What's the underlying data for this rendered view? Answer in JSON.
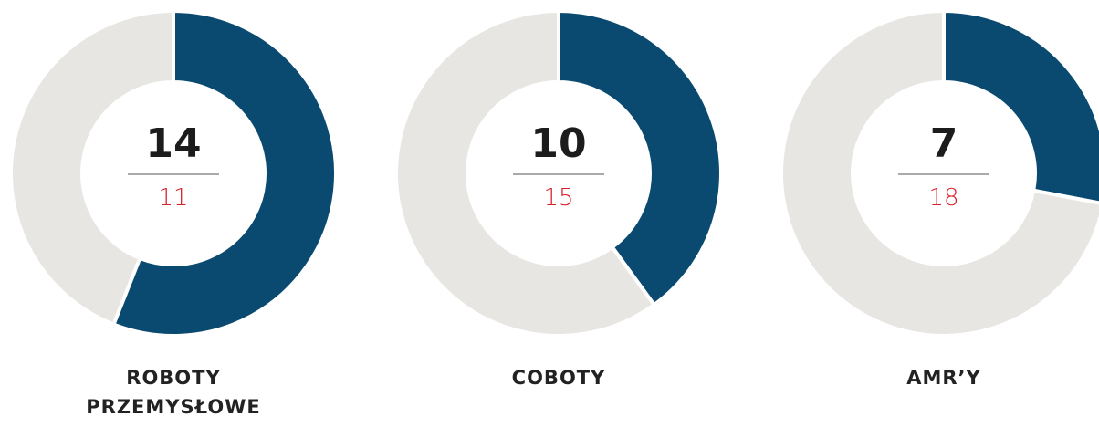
{
  "chart_data": [
    {
      "type": "donut",
      "title": "ROBOTY PRZEMYSŁOWE",
      "values": [
        14,
        11
      ],
      "colors": [
        "#0b4a70",
        "#e8e6e3"
      ]
    },
    {
      "type": "donut",
      "title": "COBOTY",
      "values": [
        10,
        15
      ],
      "colors": [
        "#0b4a70",
        "#e8e6e3"
      ]
    },
    {
      "type": "donut",
      "title": "AMR’Y",
      "values": [
        7,
        18
      ],
      "colors": [
        "#0b4a70",
        "#e8e6e3"
      ]
    }
  ]
}
